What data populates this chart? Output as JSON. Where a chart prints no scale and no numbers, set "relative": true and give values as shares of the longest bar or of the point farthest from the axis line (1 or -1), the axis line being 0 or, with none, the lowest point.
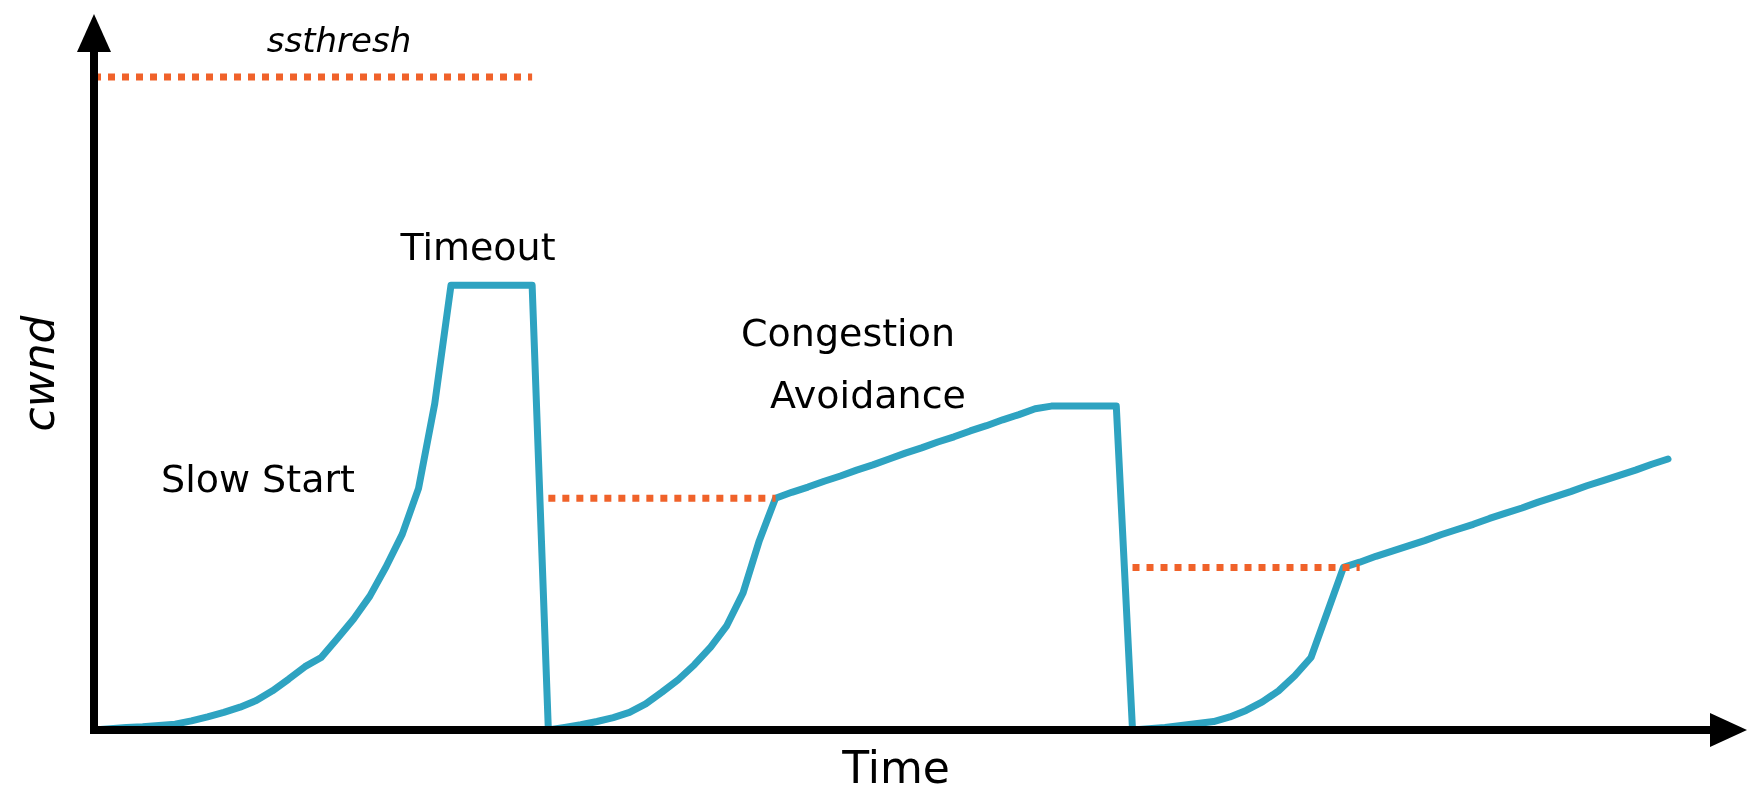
{
  "chart_data": {
    "type": "line",
    "relative": true,
    "xlabel": "Time",
    "ylabel": "cwnd",
    "categories": [
      null,
      null,
      null,
      null,
      null,
      null,
      null,
      null,
      null,
      null,
      null,
      null,
      null,
      null,
      null,
      null,
      null,
      null,
      null,
      null,
      null,
      null,
      null,
      null,
      null,
      null,
      null,
      null,
      null,
      null,
      null,
      null,
      null,
      null,
      null,
      null,
      null,
      null,
      null,
      null,
      null,
      null,
      null,
      null,
      null,
      null,
      null,
      null,
      null,
      null,
      null,
      null,
      null,
      null,
      null,
      null,
      null,
      null,
      null,
      null,
      null,
      null,
      null,
      null,
      null,
      null,
      null,
      null,
      null,
      null,
      null,
      null,
      null,
      null,
      null,
      null,
      null,
      null,
      null,
      null,
      null,
      null,
      null,
      null,
      null,
      null,
      null,
      null,
      null,
      null,
      null,
      null,
      null,
      null,
      null,
      null,
      null,
      null
    ],
    "series": [
      {
        "color": "#2ea3c1",
        "line_style": "solid",
        "values": [
          0,
          0.002,
          0.004,
          0.005,
          0.007,
          0.009,
          0.014,
          0.02,
          0.027,
          0.035,
          0.045,
          0.06,
          0.078,
          0.097,
          0.111,
          0.14,
          0.17,
          0.205,
          0.25,
          0.3,
          0.37,
          0.5,
          0.681,
          0.681,
          0.681,
          0.681,
          0.681,
          0.681,
          0,
          0.004,
          0.008,
          0.013,
          0.019,
          0.027,
          0.04,
          0.058,
          0.077,
          0.1,
          0.127,
          0.16,
          0.21,
          0.29,
          0.355,
          0.364,
          0.372,
          0.381,
          0.389,
          0.398,
          0.406,
          0.415,
          0.424,
          0.432,
          0.441,
          0.449,
          0.458,
          0.466,
          0.475,
          0.483,
          0.492,
          0.496,
          0.496,
          0.496,
          0.496,
          0.496,
          0,
          0.002,
          0.004,
          0.007,
          0.01,
          0.013,
          0.02,
          0.03,
          0.043,
          0.06,
          0.083,
          0.111,
          0.18,
          0.249,
          0.257,
          0.266,
          0.274,
          0.282,
          0.29,
          0.299,
          0.307,
          0.315,
          0.324,
          0.332,
          0.34,
          0.349,
          0.357,
          0.365,
          0.374,
          0.382,
          0.39,
          0.398,
          0.407,
          0.415
        ]
      },
      {
        "name": "ssthresh",
        "color": "#f0622a",
        "line_style": "dotted",
        "values": [
          1,
          1,
          1,
          1,
          1,
          1,
          1,
          1,
          1,
          1,
          1,
          1,
          1,
          1,
          1,
          1,
          1,
          1,
          1,
          1,
          1,
          1,
          1,
          1,
          1,
          1,
          1,
          1,
          null,
          null,
          null,
          null,
          null,
          null,
          null,
          null,
          null,
          null,
          null,
          null,
          null,
          null,
          null,
          null,
          null,
          null,
          null,
          null,
          null,
          null,
          null,
          null,
          null,
          null,
          null,
          null,
          null,
          null,
          null,
          null,
          null,
          null,
          null,
          null,
          null,
          null,
          null,
          null,
          null,
          null,
          null,
          null,
          null,
          null,
          null,
          null,
          null,
          null,
          null,
          null,
          null,
          null,
          null,
          null,
          null,
          null,
          null,
          null,
          null,
          null,
          null,
          null,
          null,
          null,
          null,
          null,
          null,
          null
        ]
      },
      {
        "color": "#f0622a",
        "line_style": "dotted",
        "values": [
          null,
          null,
          null,
          null,
          null,
          null,
          null,
          null,
          null,
          null,
          null,
          null,
          null,
          null,
          null,
          null,
          null,
          null,
          null,
          null,
          null,
          null,
          null,
          null,
          null,
          null,
          null,
          null,
          0.355,
          0.355,
          0.355,
          0.355,
          0.355,
          0.355,
          0.355,
          0.355,
          0.355,
          0.355,
          0.355,
          0.355,
          0.355,
          0.355,
          0.355,
          null,
          null,
          null,
          null,
          null,
          null,
          null,
          null,
          null,
          null,
          null,
          null,
          null,
          null,
          null,
          null,
          null,
          null,
          null,
          null,
          null,
          null,
          null,
          null,
          null,
          null,
          null,
          null,
          null,
          null,
          null,
          null,
          null,
          null,
          null,
          null,
          null,
          null,
          null,
          null,
          null,
          null,
          null,
          null,
          null,
          null,
          null,
          null,
          null,
          null,
          null,
          null,
          null,
          null,
          null
        ]
      },
      {
        "color": "#f0622a",
        "line_style": "dotted",
        "values": [
          null,
          null,
          null,
          null,
          null,
          null,
          null,
          null,
          null,
          null,
          null,
          null,
          null,
          null,
          null,
          null,
          null,
          null,
          null,
          null,
          null,
          null,
          null,
          null,
          null,
          null,
          null,
          null,
          null,
          null,
          null,
          null,
          null,
          null,
          null,
          null,
          null,
          null,
          null,
          null,
          null,
          null,
          null,
          null,
          null,
          null,
          null,
          null,
          null,
          null,
          null,
          null,
          null,
          null,
          null,
          null,
          null,
          null,
          null,
          null,
          null,
          null,
          null,
          null,
          0.249,
          0.249,
          0.249,
          0.249,
          0.249,
          0.249,
          0.249,
          0.249,
          0.249,
          0.249,
          0.249,
          0.249,
          0.249,
          0.249,
          0.249,
          null,
          null,
          null,
          null,
          null,
          null,
          null,
          null,
          null,
          null,
          null,
          null,
          null,
          null,
          null,
          null,
          null,
          null,
          null
        ]
      }
    ],
    "annotations": [
      "Timeout",
      "Congestion Avoidance",
      "Slow Start"
    ]
  }
}
